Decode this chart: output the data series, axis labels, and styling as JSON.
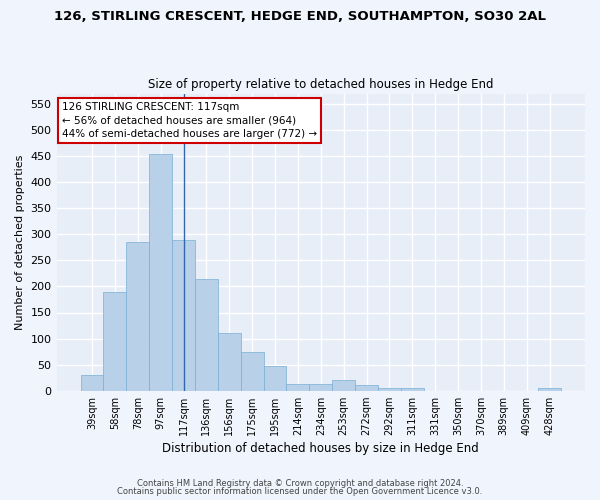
{
  "title": "126, STIRLING CRESCENT, HEDGE END, SOUTHAMPTON, SO30 2AL",
  "subtitle": "Size of property relative to detached houses in Hedge End",
  "xlabel": "Distribution of detached houses by size in Hedge End",
  "ylabel": "Number of detached properties",
  "categories": [
    "39sqm",
    "58sqm",
    "78sqm",
    "97sqm",
    "117sqm",
    "136sqm",
    "156sqm",
    "175sqm",
    "195sqm",
    "214sqm",
    "234sqm",
    "253sqm",
    "272sqm",
    "292sqm",
    "311sqm",
    "331sqm",
    "350sqm",
    "370sqm",
    "389sqm",
    "409sqm",
    "428sqm"
  ],
  "values": [
    30,
    190,
    285,
    455,
    290,
    215,
    110,
    75,
    47,
    13,
    12,
    21,
    10,
    6,
    6,
    0,
    0,
    0,
    0,
    0,
    6
  ],
  "bar_color": "#b8d0e8",
  "bar_edge_color": "#7aafd4",
  "vline_index": 4,
  "vline_color": "#3366aa",
  "ylim": [
    0,
    570
  ],
  "yticks": [
    0,
    50,
    100,
    150,
    200,
    250,
    300,
    350,
    400,
    450,
    500,
    550
  ],
  "bg_color": "#e8eef8",
  "grid_color": "#ffffff",
  "annotation_line1": "126 STIRLING CRESCENT: 117sqm",
  "annotation_line2": "← 56% of detached houses are smaller (964)",
  "annotation_line3": "44% of semi-detached houses are larger (772) →",
  "annotation_box_color": "#ffffff",
  "annotation_box_edge": "#cc0000",
  "footer1": "Contains HM Land Registry data © Crown copyright and database right 2024.",
  "footer2": "Contains public sector information licensed under the Open Government Licence v3.0."
}
